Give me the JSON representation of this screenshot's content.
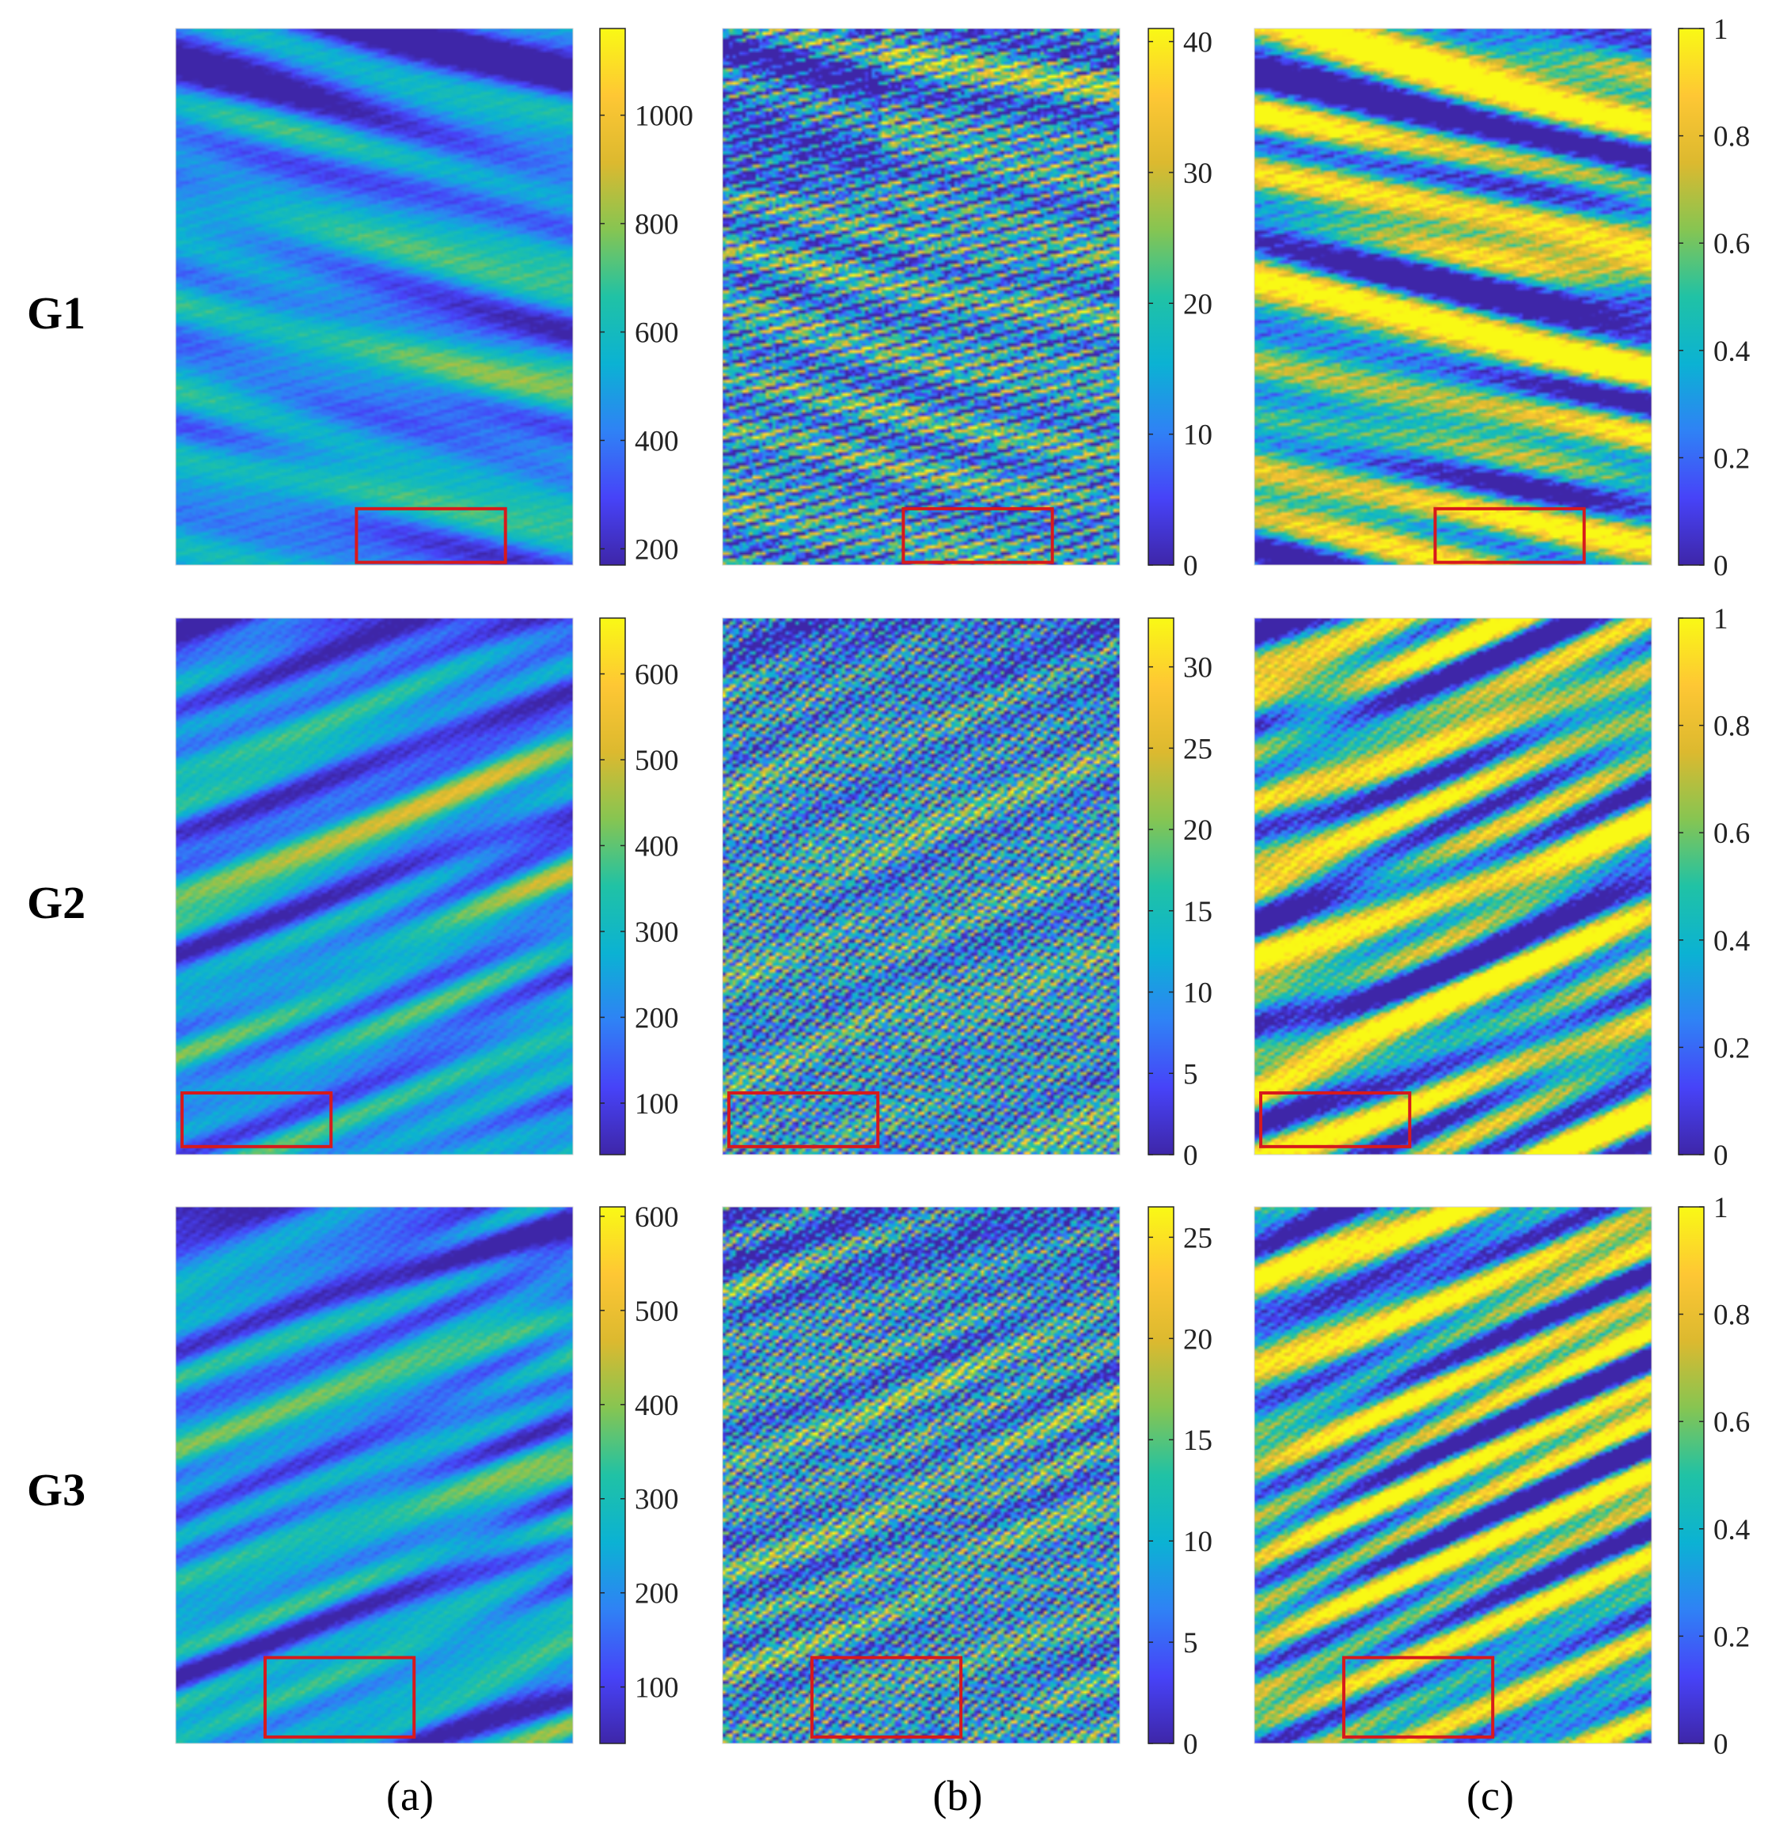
{
  "figure": {
    "row_labels": [
      "G1",
      "G2",
      "G3"
    ],
    "col_labels": [
      "(a)",
      "(b)",
      "(c)"
    ]
  },
  "colors": {
    "colormap": [
      "#3e26a8",
      "#4743f8",
      "#2f82f5",
      "#0bb2d3",
      "#20c2a5",
      "#86c552",
      "#dcb92f",
      "#fec734",
      "#f9f915"
    ],
    "highlight_box": "#d7191c",
    "axes_border": "#262626"
  },
  "chart_data": [
    {
      "type": "heatmap",
      "row": "G1",
      "column": "(a)",
      "colorbar_ticks": [
        200,
        400,
        600,
        800,
        1000
      ],
      "clim": [
        170,
        1160
      ],
      "seed": 11,
      "slope": -0.18,
      "highlight": "bottom-center"
    },
    {
      "type": "heatmap",
      "row": "G1",
      "column": "(b)",
      "colorbar_ticks": [
        0,
        10,
        20,
        30,
        40
      ],
      "clim": [
        0,
        41
      ],
      "seed": 12,
      "slope": -0.16,
      "highlight": "bottom-center"
    },
    {
      "type": "heatmap",
      "row": "G1",
      "column": "(c)",
      "colorbar_ticks": [
        0,
        0.2,
        0.4,
        0.6,
        0.8,
        1
      ],
      "clim": [
        0,
        1
      ],
      "seed": 13,
      "slope": -0.15,
      "highlight": "bottom-center"
    },
    {
      "type": "heatmap",
      "row": "G2",
      "column": "(a)",
      "colorbar_ticks": [
        100,
        200,
        300,
        400,
        500,
        600
      ],
      "clim": [
        40,
        665
      ],
      "seed": 21,
      "slope": 0.3,
      "highlight": "bottom-left"
    },
    {
      "type": "heatmap",
      "row": "G2",
      "column": "(b)",
      "colorbar_ticks": [
        0,
        5,
        10,
        15,
        20,
        25,
        30
      ],
      "clim": [
        0,
        33
      ],
      "seed": 22,
      "slope": 0.3,
      "highlight": "bottom-left"
    },
    {
      "type": "heatmap",
      "row": "G2",
      "column": "(c)",
      "colorbar_ticks": [
        0,
        0.2,
        0.4,
        0.6,
        0.8,
        1
      ],
      "clim": [
        0,
        1
      ],
      "seed": 23,
      "slope": 0.3,
      "highlight": "bottom-left"
    },
    {
      "type": "heatmap",
      "row": "G3",
      "column": "(a)",
      "colorbar_ticks": [
        100,
        200,
        300,
        400,
        500,
        600
      ],
      "clim": [
        40,
        610
      ],
      "seed": 31,
      "slope": 0.27,
      "highlight": "bottom-center-left"
    },
    {
      "type": "heatmap",
      "row": "G3",
      "column": "(b)",
      "colorbar_ticks": [
        0,
        5,
        10,
        15,
        20,
        25
      ],
      "clim": [
        0,
        26.5
      ],
      "seed": 32,
      "slope": 0.3,
      "highlight": "bottom-center-left"
    },
    {
      "type": "heatmap",
      "row": "G3",
      "column": "(c)",
      "colorbar_ticks": [
        0,
        0.2,
        0.4,
        0.6,
        0.8,
        1
      ],
      "clim": [
        0,
        1
      ],
      "seed": 33,
      "slope": 0.27,
      "highlight": "bottom-center-left"
    }
  ]
}
